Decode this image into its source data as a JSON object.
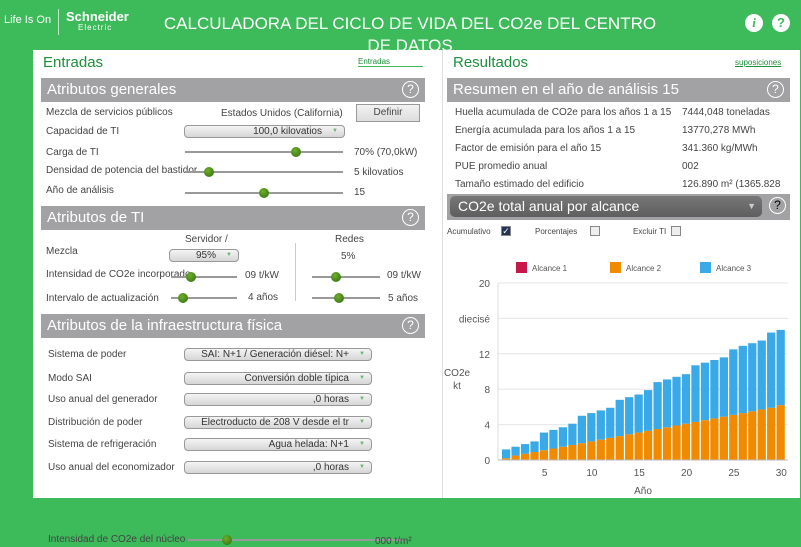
{
  "header": {
    "life_is_on": "Life Is On",
    "brand": "Schneider",
    "brand_sub": "Electric",
    "title": "CALCULADORA DEL CICLO DE VIDA DEL CO2e DEL CENTRO DE DATOS",
    "info_icon": "info-icon",
    "help_icon": "help-icon"
  },
  "left": {
    "title": "Entradas",
    "link": "Entradas",
    "general": {
      "title": "Atributos generales",
      "mix_label": "Mezcla de servicios públicos",
      "mix_value": "Estados Unidos (California)",
      "define_btn": "Definir",
      "capacity_label": "Capacidad de TI",
      "capacity_value": "100,0 kilovatios",
      "load_label": "Carga de TI",
      "load_value": "70% (70,0kW)",
      "load_pct": 70,
      "density_label": "Densidad de potencia del bastidor",
      "density_value": "5 kilovatios",
      "density_pct": 15,
      "year_label": "Año de análisis",
      "year_value": "15",
      "year_pct": 50
    },
    "it": {
      "title": "Atributos de TI",
      "server_header": "Servidor /",
      "network_header": "Redes",
      "mix_label": "Mezcla",
      "server_mix": "95%",
      "network_mix": "5%",
      "intensity_label": "Intensidad de CO2e incorporado",
      "server_intensity": "09 t/kW",
      "network_intensity": "09 t/kW",
      "refresh_label": "Intervalo de actualización",
      "server_refresh": "4 años",
      "network_refresh": "5 años"
    },
    "infra": {
      "title": "Atributos de la infraestructura física",
      "rows": [
        {
          "label": "Sistema de poder",
          "value": "SAI: N+1 / Generación diésel: N+"
        },
        {
          "label": "Modo SAI",
          "value": "Conversión doble típica"
        },
        {
          "label": "Uso anual del generador",
          "value": ",0 horas"
        },
        {
          "label": "Distribución de poder",
          "value": "Electroducto de 208 V desde el tr"
        },
        {
          "label": "Sistema de refrigeración",
          "value": "Agua helada: N+1"
        },
        {
          "label": "Uso anual del economizador",
          "value": ",0 horas"
        }
      ],
      "core_label": "Intensidad de CO2e del núcleo",
      "core_value": "000 t/m²"
    }
  },
  "right": {
    "title": "Resultados",
    "link": "suposiciones",
    "summary": {
      "title": "Resumen en el año de análisis 15",
      "rows": [
        {
          "label": "Huella acumulada de CO2e para los años 1 a 15",
          "value": "7444,048 toneladas"
        },
        {
          "label": "Energía acumulada para los años 1 a 15",
          "value": "13770,278 MWh"
        },
        {
          "label": "Factor de emisión para el año 15",
          "value": "341.360 kg/MWh"
        },
        {
          "label": "PUE promedio anual",
          "value": "002"
        },
        {
          "label": "Tamaño estimado del edificio",
          "value": "126.890 m² (1365.828"
        }
      ]
    },
    "chart_select": "CO2e total anual por alcance",
    "options": {
      "cumulative": "Acumulativo",
      "cumulative_checked": true,
      "percent": "Porcentajes",
      "percent_checked": false,
      "exclude": "Excluir TI",
      "exclude_checked": false
    }
  },
  "chart_data": {
    "type": "bar",
    "stacked": true,
    "xlabel": "Año",
    "ylabel": "CO2e kt",
    "ylim": [
      0,
      20
    ],
    "yticks": [
      "0",
      "4",
      "8",
      "12",
      "diecisé",
      "20"
    ],
    "xticks": [
      "5",
      "10",
      "15",
      "20",
      "25",
      "30"
    ],
    "grid": true,
    "legend": "top",
    "x": [
      1,
      2,
      3,
      4,
      5,
      6,
      7,
      8,
      9,
      10,
      11,
      12,
      13,
      14,
      15,
      16,
      17,
      18,
      19,
      20,
      21,
      22,
      23,
      24,
      25,
      26,
      27,
      28,
      29,
      30
    ],
    "series": [
      {
        "name": "Alcance 1",
        "color": "#c8174a",
        "values": [
          0,
          0,
          0,
          0,
          0,
          0,
          0,
          0,
          0,
          0,
          0,
          0,
          0,
          0,
          0,
          0,
          0,
          0,
          0,
          0,
          0,
          0,
          0,
          0,
          0,
          0,
          0,
          0,
          0,
          0
        ]
      },
      {
        "name": "Alcance 2",
        "color": "#f08a00",
        "values": [
          0.2,
          0.5,
          0.7,
          0.9,
          1.1,
          1.3,
          1.5,
          1.7,
          1.9,
          2.1,
          2.3,
          2.5,
          2.7,
          2.9,
          3.1,
          3.3,
          3.5,
          3.7,
          3.9,
          4.1,
          4.3,
          4.5,
          4.7,
          4.9,
          5.1,
          5.3,
          5.5,
          5.7,
          5.9,
          6.2
        ]
      },
      {
        "name": "Alcance 3",
        "color": "#3aa9e8",
        "values": [
          1.0,
          1.0,
          1.1,
          1.2,
          2.0,
          2.1,
          2.2,
          2.4,
          3.1,
          3.2,
          3.3,
          3.4,
          4.1,
          4.2,
          4.3,
          4.6,
          5.3,
          5.4,
          5.5,
          5.6,
          6.4,
          6.5,
          6.6,
          6.7,
          7.4,
          7.6,
          7.7,
          7.8,
          8.5,
          8.5
        ]
      }
    ]
  }
}
